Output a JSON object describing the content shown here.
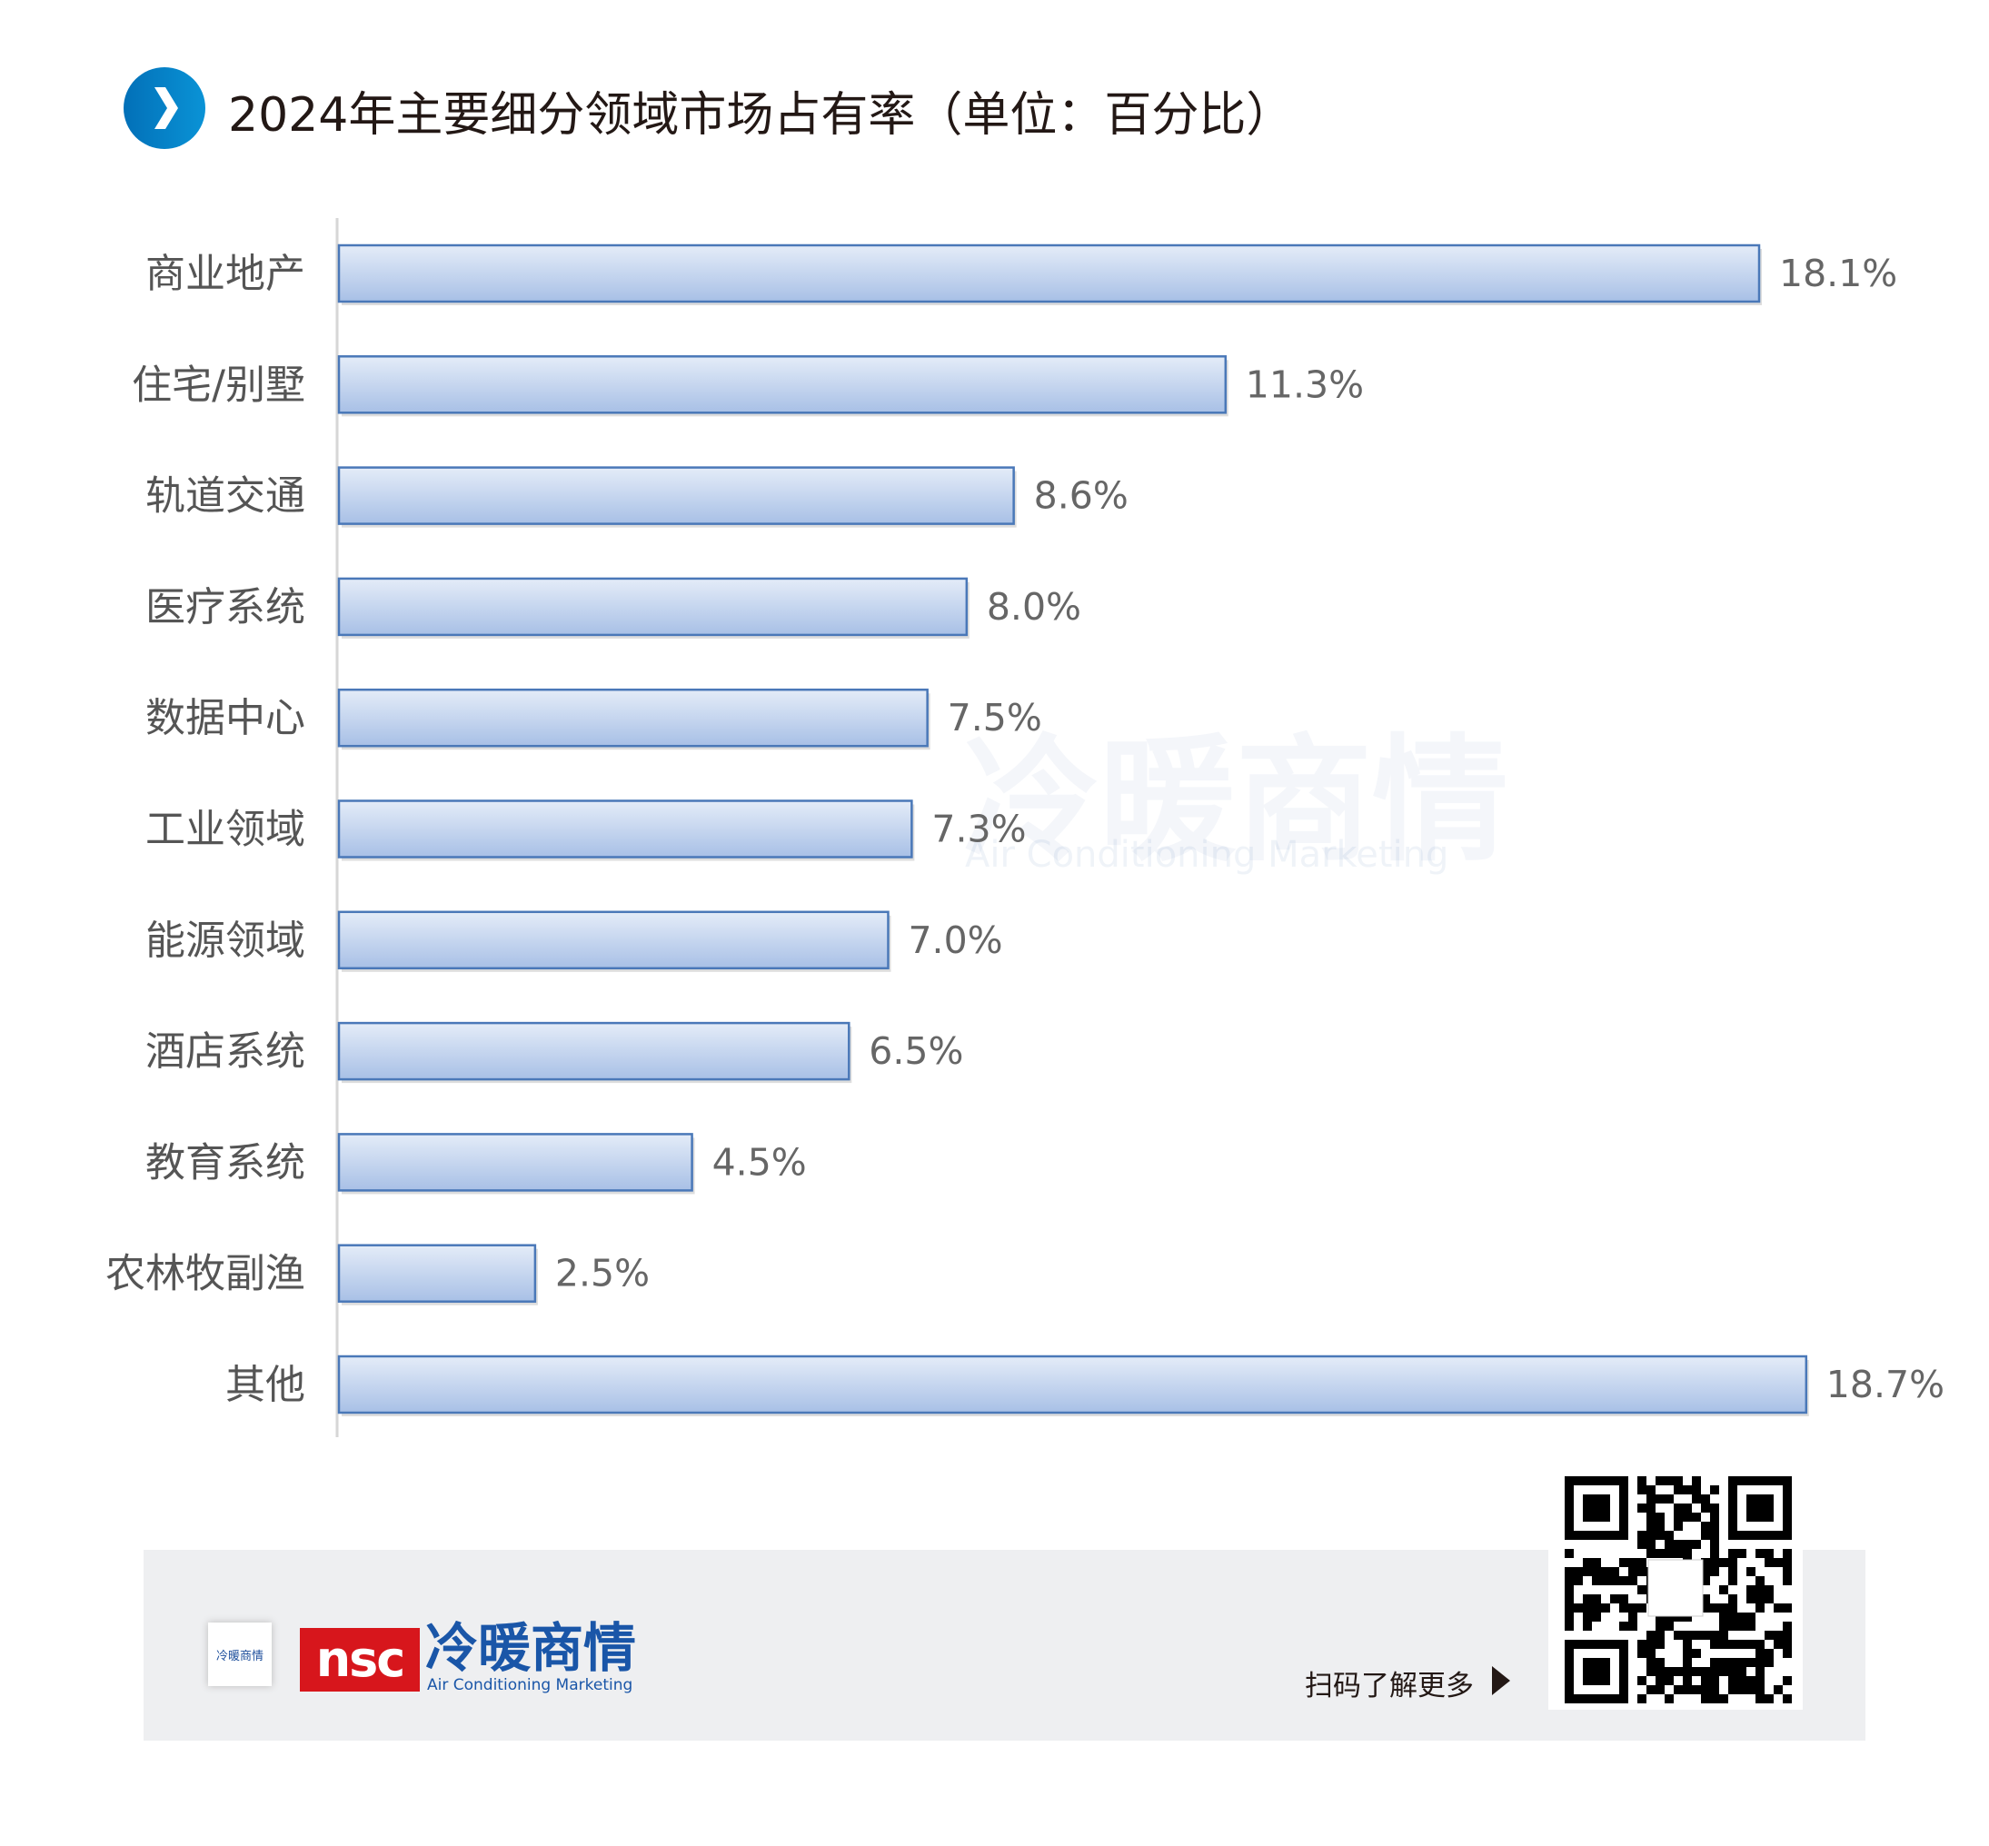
{
  "title": "2024年主要细分领域市场占有率（单位：百分比）",
  "colors": {
    "bar_top": "#e4ecf8",
    "bar_bottom": "#a8c0e6",
    "bar_border": "#4a78b8",
    "icon": "#0a86cc",
    "footer_bg": "#eeeff1",
    "brand_red": "#d7161c",
    "brand_blue": "#1a56a8"
  },
  "chart_data": {
    "type": "bar",
    "orientation": "horizontal",
    "title": "2024年主要细分领域市场占有率（单位：百分比）",
    "categories": [
      "商业地产",
      "住宅/别墅",
      "轨道交通",
      "医疗系统",
      "数据中心",
      "工业领域",
      "能源领域",
      "酒店系统",
      "教育系统",
      "农林牧副渔",
      "其他"
    ],
    "values": [
      18.1,
      11.3,
      8.6,
      8.0,
      7.5,
      7.3,
      7.0,
      6.5,
      4.5,
      2.5,
      18.7
    ],
    "labels": [
      "18.1%",
      "11.3%",
      "8.6%",
      "8.0%",
      "7.5%",
      "7.3%",
      "7.0%",
      "6.5%",
      "4.5%",
      "2.5%",
      "18.7%"
    ],
    "unit": "%",
    "xlim": [
      0,
      18.7
    ],
    "grid": false,
    "legend": "none"
  },
  "watermark": {
    "cn": "冷暖商情",
    "en": "Air Conditioning Marketing"
  },
  "footer": {
    "logo_nsc": "nsc",
    "brand_cn": "冷暖商情",
    "brand_en": "Air Conditioning Marketing",
    "small_logo": "冷暖商情",
    "scan_text": "扫码了解更多"
  }
}
